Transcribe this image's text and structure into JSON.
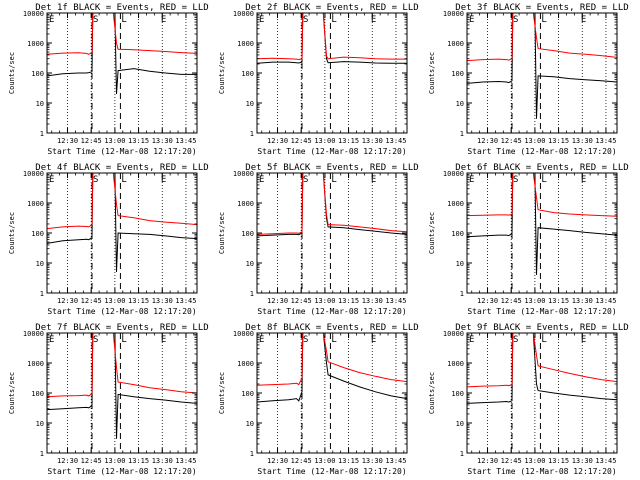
{
  "figure": {
    "ylabel": "Counts/sec",
    "xlabel": "Start Time (12-Mar-08 12:17:20)",
    "title_suffix": "BLACK = Events, RED = LLD",
    "x_tick_labels": [
      "12:30",
      "12:45",
      "13:00",
      "13:15",
      "13:30",
      "13:45"
    ],
    "y_tick_labels": [
      "1",
      "10",
      "100",
      "1000",
      "10000"
    ],
    "marker_labels": {
      "E1": "E",
      "S": "S",
      "L": "L",
      "E2": "E"
    },
    "colors": {
      "events": "#000000",
      "lld": "#ff0000",
      "axes": "#000000",
      "background": "#ffffff"
    }
  },
  "chart_data": [
    {
      "type": "line",
      "title": "Det 1f BLACK = Events, RED = LLD",
      "xlabel": "Start Time (12-Mar-08 12:17:20)",
      "ylabel": "Counts/sec",
      "yscale": "log",
      "xlim_minutes_after_1217": [
        0,
        95
      ],
      "ylim": [
        1,
        10000
      ],
      "markers_minutes": {
        "E1": 0,
        "S": 28.5,
        "L": 46.5,
        "E2": 71.5
      },
      "series": [
        {
          "name": "Events",
          "color": "#000000",
          "x": [
            0,
            10,
            20,
            25,
            26.5,
            28.5,
            29,
            42,
            43,
            44,
            45,
            55,
            65,
            75,
            85,
            95
          ],
          "y": [
            80,
            95,
            100,
            100,
            103,
            110,
            10000,
            10000,
            10000,
            20,
            120,
            140,
            115,
            100,
            90,
            90
          ]
        },
        {
          "name": "LLD",
          "color": "#ff0000",
          "x": [
            0,
            10,
            20,
            25,
            26.5,
            28.5,
            29,
            40,
            42,
            44,
            45,
            55,
            65,
            75,
            85,
            95
          ],
          "y": [
            420,
            460,
            470,
            450,
            420,
            480,
            10000,
            10000,
            10000,
            1000,
            620,
            600,
            560,
            520,
            480,
            450
          ]
        }
      ]
    },
    {
      "type": "line",
      "title": "Det 2f BLACK = Events, RED = LLD",
      "xlabel": "Start Time (12-Mar-08 12:17:20)",
      "ylabel": "Counts/sec",
      "yscale": "log",
      "xlim_minutes_after_1217": [
        0,
        95
      ],
      "ylim": [
        1,
        10000
      ],
      "markers_minutes": {
        "E1": 0,
        "S": 28.5,
        "L": 46.5,
        "E2": 71.5
      },
      "series": [
        {
          "name": "Events",
          "color": "#000000",
          "x": [
            0,
            10,
            20,
            25,
            26.5,
            28.5,
            29,
            40,
            42,
            44,
            45,
            55,
            65,
            75,
            85,
            95
          ],
          "y": [
            210,
            230,
            230,
            220,
            215,
            230,
            10000,
            10000,
            10000,
            300,
            220,
            240,
            230,
            215,
            210,
            210
          ]
        },
        {
          "name": "LLD",
          "color": "#ff0000",
          "x": [
            0,
            10,
            20,
            25,
            26.5,
            28.5,
            29,
            40,
            42,
            44,
            45,
            55,
            65,
            75,
            85,
            95
          ],
          "y": [
            300,
            310,
            300,
            290,
            280,
            300,
            10000,
            10000,
            10000,
            360,
            300,
            340,
            320,
            300,
            290,
            290
          ]
        }
      ]
    },
    {
      "type": "line",
      "title": "Det 3f BLACK = Events, RED = LLD",
      "xlabel": "Start Time (12-Mar-08 12:17:20)",
      "ylabel": "Counts/sec",
      "yscale": "log",
      "xlim_minutes_after_1217": [
        0,
        95
      ],
      "ylim": [
        1,
        10000
      ],
      "markers_minutes": {
        "E1": 0,
        "S": 28.5,
        "L": 46.5,
        "E2": 71.5
      },
      "series": [
        {
          "name": "Events",
          "color": "#000000",
          "x": [
            0,
            10,
            20,
            25,
            26.5,
            28.5,
            29,
            42,
            43,
            44,
            45,
            55,
            65,
            75,
            85,
            95
          ],
          "y": [
            45,
            50,
            52,
            50,
            48,
            55,
            10000,
            10000,
            10000,
            3,
            80,
            75,
            65,
            60,
            55,
            50
          ]
        },
        {
          "name": "LLD",
          "color": "#ff0000",
          "x": [
            0,
            10,
            20,
            25,
            26.5,
            28.5,
            29,
            40,
            42,
            44,
            45,
            55,
            65,
            75,
            85,
            95
          ],
          "y": [
            260,
            280,
            290,
            280,
            270,
            300,
            10000,
            10000,
            10000,
            1500,
            650,
            560,
            460,
            420,
            380,
            330
          ]
        }
      ]
    },
    {
      "type": "line",
      "title": "Det 4f BLACK = Events, RED = LLD",
      "xlabel": "Start Time (12-Mar-08 12:17:20)",
      "ylabel": "Counts/sec",
      "yscale": "log",
      "xlim_minutes_after_1217": [
        0,
        95
      ],
      "ylim": [
        1,
        10000
      ],
      "markers_minutes": {
        "E1": 0,
        "S": 28.5,
        "L": 46.5,
        "E2": 71.5
      },
      "series": [
        {
          "name": "Events",
          "color": "#000000",
          "x": [
            0,
            10,
            20,
            25,
            26.5,
            28.5,
            29,
            42,
            43,
            44,
            45,
            55,
            65,
            75,
            85,
            95
          ],
          "y": [
            45,
            55,
            60,
            62,
            60,
            70,
            10000,
            10000,
            10000,
            5,
            100,
            95,
            90,
            80,
            70,
            65
          ]
        },
        {
          "name": "LLD",
          "color": "#ff0000",
          "x": [
            0,
            10,
            20,
            25,
            26.5,
            28.5,
            29,
            40,
            42,
            44,
            45,
            55,
            65,
            75,
            85,
            95
          ],
          "y": [
            140,
            160,
            170,
            165,
            160,
            190,
            10000,
            10000,
            10000,
            900,
            380,
            320,
            260,
            230,
            210,
            190
          ]
        }
      ]
    },
    {
      "type": "line",
      "title": "Det 5f BLACK = Events, RED = LLD",
      "xlabel": "Start Time (12-Mar-08 12:17:20)",
      "ylabel": "Counts/sec",
      "yscale": "log",
      "xlim_minutes_after_1217": [
        0,
        95
      ],
      "ylim": [
        1,
        10000
      ],
      "markers_minutes": {
        "E1": 0,
        "S": 28.5,
        "L": 46.5,
        "E2": 71.5
      },
      "series": [
        {
          "name": "Events",
          "color": "#000000",
          "x": [
            0,
            10,
            20,
            25,
            26.5,
            28.5,
            29,
            40,
            42,
            44,
            45,
            55,
            65,
            75,
            85,
            95
          ],
          "y": [
            80,
            85,
            90,
            90,
            88,
            100,
            10000,
            10000,
            10000,
            300,
            160,
            150,
            130,
            115,
            100,
            90
          ]
        },
        {
          "name": "LLD",
          "color": "#ff0000",
          "x": [
            0,
            10,
            20,
            25,
            26.5,
            28.5,
            29,
            40,
            42,
            44,
            45,
            55,
            65,
            75,
            85,
            95
          ],
          "y": [
            90,
            95,
            100,
            100,
            98,
            110,
            10000,
            10000,
            10000,
            400,
            190,
            180,
            160,
            140,
            120,
            110
          ]
        }
      ]
    },
    {
      "type": "line",
      "title": "Det 6f BLACK = Events, RED = LLD",
      "xlabel": "Start Time (12-Mar-08 12:17:20)",
      "ylabel": "Counts/sec",
      "yscale": "log",
      "xlim_minutes_after_1217": [
        0,
        95
      ],
      "ylim": [
        1,
        10000
      ],
      "markers_minutes": {
        "E1": 0,
        "S": 28.5,
        "L": 46.5,
        "E2": 71.5
      },
      "series": [
        {
          "name": "Events",
          "color": "#000000",
          "x": [
            0,
            10,
            20,
            25,
            26.5,
            28.5,
            29,
            42,
            43,
            44,
            45,
            55,
            65,
            75,
            85,
            95
          ],
          "y": [
            75,
            80,
            85,
            85,
            82,
            95,
            10000,
            10000,
            10000,
            4,
            150,
            135,
            120,
            105,
            95,
            85
          ]
        },
        {
          "name": "LLD",
          "color": "#ff0000",
          "x": [
            0,
            10,
            20,
            25,
            26.5,
            28.5,
            29,
            40,
            42,
            44,
            45,
            55,
            65,
            75,
            85,
            95
          ],
          "y": [
            380,
            390,
            400,
            400,
            395,
            420,
            10000,
            10000,
            10000,
            1500,
            600,
            480,
            430,
            400,
            380,
            360
          ]
        }
      ]
    },
    {
      "type": "line",
      "title": "Det 7f BLACK = Events, RED = LLD",
      "xlabel": "Start Time (12-Mar-08 12:17:20)",
      "ylabel": "Counts/sec",
      "yscale": "log",
      "xlim_minutes_after_1217": [
        0,
        95
      ],
      "ylim": [
        1,
        10000
      ],
      "markers_minutes": {
        "E1": 0,
        "S": 28.5,
        "L": 46.5,
        "E2": 71.5
      },
      "series": [
        {
          "name": "Events",
          "color": "#000000",
          "x": [
            0,
            10,
            20,
            25,
            26.5,
            28.5,
            29,
            42,
            43,
            44,
            45,
            55,
            65,
            75,
            85,
            95
          ],
          "y": [
            28,
            30,
            32,
            33,
            32,
            38,
            10000,
            10000,
            10000,
            3,
            90,
            75,
            65,
            58,
            50,
            45
          ]
        },
        {
          "name": "LLD",
          "color": "#ff0000",
          "x": [
            0,
            10,
            20,
            25,
            26.5,
            28.5,
            29,
            40,
            42,
            44,
            45,
            55,
            65,
            75,
            85,
            95
          ],
          "y": [
            75,
            80,
            82,
            85,
            80,
            95,
            10000,
            10000,
            10000,
            700,
            230,
            190,
            150,
            130,
            110,
            100
          ]
        }
      ]
    },
    {
      "type": "line",
      "title": "Det 8f BLACK = Events, RED = LLD",
      "xlabel": "Start Time (12-Mar-08 12:17:20)",
      "ylabel": "Counts/sec",
      "yscale": "log",
      "xlim_minutes_after_1217": [
        0,
        95
      ],
      "ylim": [
        1,
        10000
      ],
      "markers_minutes": {
        "E1": 0,
        "S": 28.5,
        "L": 46.5,
        "E2": 71.5
      },
      "series": [
        {
          "name": "Events",
          "color": "#000000",
          "x": [
            0,
            10,
            20,
            25,
            26.5,
            28.5,
            29,
            40,
            42,
            44,
            45,
            55,
            65,
            75,
            85,
            95
          ],
          "y": [
            50,
            55,
            60,
            65,
            55,
            110,
            10000,
            10000,
            10000,
            1000,
            400,
            250,
            160,
            110,
            80,
            65
          ]
        },
        {
          "name": "LLD",
          "color": "#ff0000",
          "x": [
            0,
            10,
            20,
            25,
            26.5,
            28.5,
            29,
            40,
            42,
            44,
            45,
            55,
            65,
            75,
            85,
            95
          ],
          "y": [
            180,
            190,
            200,
            210,
            190,
            320,
            10000,
            10000,
            10000,
            2500,
            1100,
            700,
            480,
            360,
            280,
            240
          ]
        }
      ]
    },
    {
      "type": "line",
      "title": "Det 9f BLACK = Events, RED = LLD",
      "xlabel": "Start Time (12-Mar-08 12:17:20)",
      "ylabel": "Counts/sec",
      "yscale": "log",
      "xlim_minutes_after_1217": [
        0,
        95
      ],
      "ylim": [
        1,
        10000
      ],
      "markers_minutes": {
        "E1": 0,
        "S": 28.5,
        "L": 46.5,
        "E2": 71.5
      },
      "series": [
        {
          "name": "Events",
          "color": "#000000",
          "x": [
            0,
            10,
            20,
            25,
            26.5,
            28.5,
            29,
            40,
            42,
            44,
            45,
            55,
            65,
            75,
            85,
            95
          ],
          "y": [
            45,
            48,
            50,
            52,
            50,
            55,
            10000,
            10000,
            10000,
            200,
            120,
            100,
            85,
            75,
            65,
            60
          ]
        },
        {
          "name": "LLD",
          "color": "#ff0000",
          "x": [
            0,
            10,
            20,
            25,
            26.5,
            28.5,
            29,
            40,
            42,
            44,
            45,
            55,
            65,
            75,
            85,
            95
          ],
          "y": [
            160,
            170,
            175,
            180,
            175,
            190,
            10000,
            10000,
            10000,
            1800,
            800,
            600,
            450,
            350,
            280,
            240
          ]
        }
      ]
    }
  ]
}
